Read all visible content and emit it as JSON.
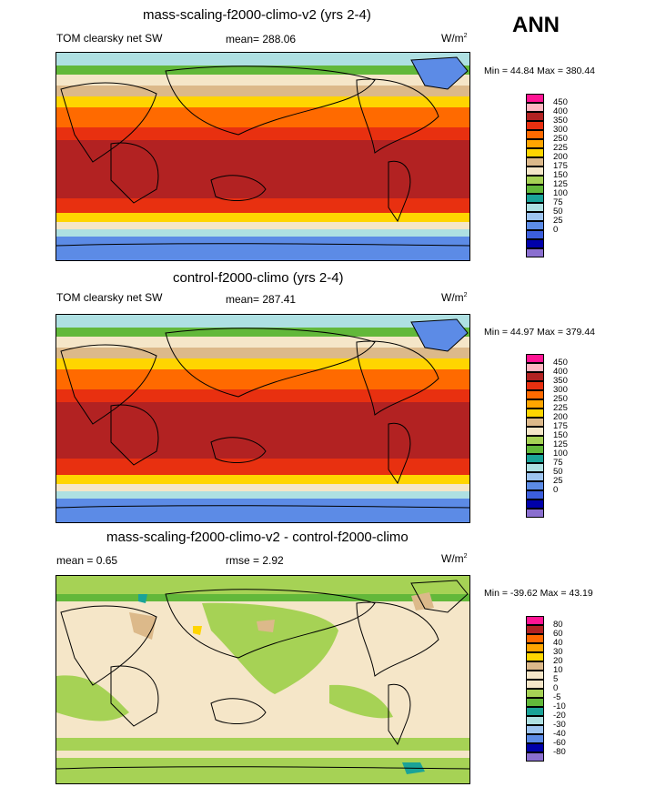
{
  "season": "ANN",
  "colors": {
    "abs_scale": [
      "#8a6fcf",
      "#0000aa",
      "#3c5edc",
      "#5c8be6",
      "#9ec4f0",
      "#aee0e2",
      "#1aa398",
      "#62b83a",
      "#a6d255",
      "#f5e6c8",
      "#dcb98a",
      "#ffd500",
      "#ffa500",
      "#ff6a00",
      "#e83010",
      "#b22222",
      "#ffb6c1",
      "#ff1493"
    ],
    "diff_scale": [
      "#8a6fcf",
      "#0000aa",
      "#3c5edc",
      "#5c8be6",
      "#9ec4f0",
      "#aee0e2",
      "#1aa398",
      "#62b83a",
      "#a6d255",
      "#f5e6c8",
      "#dcb98a",
      "#ffd500",
      "#ffa500",
      "#ff6a00",
      "#b22222",
      "#ff1493"
    ]
  },
  "panels": [
    {
      "title": "mass-scaling-f2000-climo-v2 (yrs 2-4)",
      "left_label": "TOM clearsky net SW",
      "mean_label": "mean= 288.06",
      "units_base": "W/m",
      "units_exp": "2",
      "minmax": "Min =  44.84 Max = 380.44",
      "colorbar_labels": [
        "0",
        "25",
        "50",
        "75",
        "100",
        "125",
        "150",
        "175",
        "200",
        "225",
        "250",
        "300",
        "350",
        "400",
        "450"
      ]
    },
    {
      "title": "control-f2000-climo (yrs 2-4)",
      "left_label": "TOM clearsky net SW",
      "mean_label": "mean= 287.41",
      "units_base": "W/m",
      "units_exp": "2",
      "minmax": "Min =  44.97 Max = 379.44",
      "colorbar_labels": [
        "0",
        "25",
        "50",
        "75",
        "100",
        "125",
        "150",
        "175",
        "200",
        "225",
        "250",
        "300",
        "350",
        "400",
        "450"
      ]
    },
    {
      "title": "mass-scaling-f2000-climo-v2 - control-f2000-climo",
      "left_label": "mean =   0.65",
      "mean_label": "rmse =   2.92",
      "units_base": "W/m",
      "units_exp": "2",
      "minmax": "Min = -39.62 Max =  43.19",
      "colorbar_labels": [
        "-80",
        "-60",
        "-40",
        "-30",
        "-20",
        "-10",
        "-5",
        "0",
        "5",
        "10",
        "20",
        "30",
        "40",
        "60",
        "80"
      ]
    }
  ]
}
